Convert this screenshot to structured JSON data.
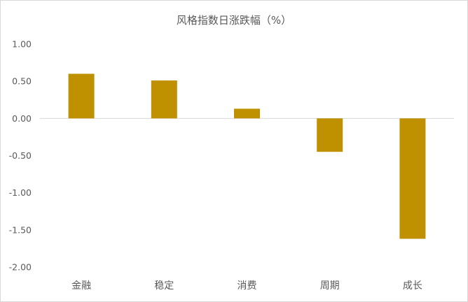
{
  "chart_data": {
    "type": "bar",
    "title": "风格指数日涨跌幅（%）",
    "categories": [
      "金融",
      "稳定",
      "消费",
      "周期",
      "成长"
    ],
    "values": [
      0.6,
      0.51,
      0.13,
      -0.45,
      -1.62
    ],
    "ylim": [
      -2.0,
      1.0
    ],
    "yticks": [
      "1.00",
      "0.50",
      "0.00",
      "-0.50",
      "-1.00",
      "-1.50",
      "-2.00"
    ],
    "grid": false,
    "legend": "none",
    "colors": {
      "bar": "#BF9000",
      "axis": "#D9D9D9",
      "text": "#595959"
    }
  }
}
